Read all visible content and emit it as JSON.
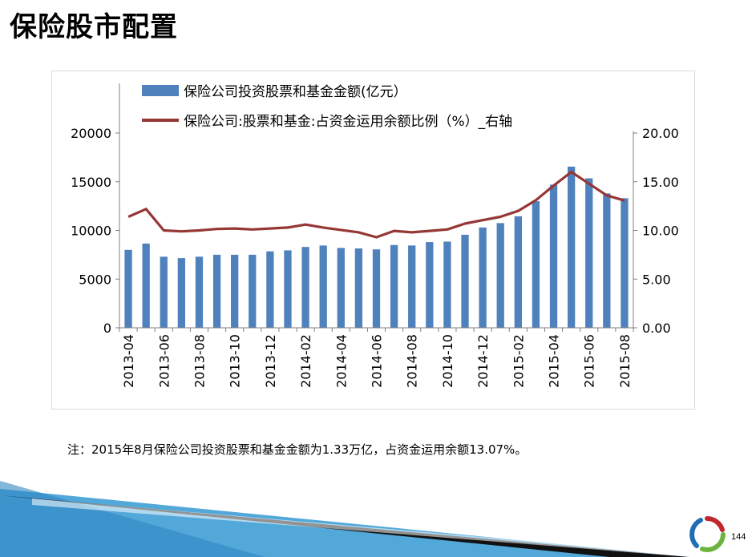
{
  "title": "保险股市配置",
  "note": "注：2015年8月保险公司投资股票和基金金额为1.33万亿，占资金运用余额13.07%。",
  "page_number": "144",
  "colors": {
    "bar": "#4f81bd",
    "line": "#953735",
    "axis": "#7f7f7f",
    "logo_blue": "#1f6fb5",
    "logo_red": "#c0282d",
    "logo_green": "#6cb33f",
    "deco_blue": "#4aa3d8"
  },
  "chart_data": {
    "type": "bar+line",
    "categories": [
      "2013-04",
      "2013-05",
      "2013-06",
      "2013-07",
      "2013-08",
      "2013-09",
      "2013-10",
      "2013-11",
      "2013-12",
      "2014-01",
      "2014-02",
      "2014-03",
      "2014-04",
      "2014-05",
      "2014-06",
      "2014-07",
      "2014-08",
      "2014-09",
      "2014-10",
      "2014-11",
      "2014-12",
      "2015-01",
      "2015-02",
      "2015-03",
      "2015-04",
      "2015-05",
      "2015-06",
      "2015-07",
      "2015-08"
    ],
    "tick_labels": [
      "2013-04",
      "2013-06",
      "2013-08",
      "2013-10",
      "2013-12",
      "2014-02",
      "2014-04",
      "2014-06",
      "2014-08",
      "2014-10",
      "2014-12",
      "2015-02",
      "2015-04",
      "2015-06",
      "2015-08"
    ],
    "series": [
      {
        "name": "保险公司投资股票和基金金额(亿元）",
        "type": "bar",
        "axis": "left",
        "values": [
          8000,
          8650,
          7300,
          7150,
          7300,
          7500,
          7500,
          7500,
          7850,
          7950,
          8300,
          8450,
          8200,
          8150,
          8050,
          8500,
          8450,
          8800,
          8850,
          9550,
          10300,
          10750,
          11450,
          13000,
          14700,
          16550,
          15350,
          13800,
          13300
        ]
      },
      {
        "name": "保险公司:股票和基金:占资金运用余额比例（%）_右轴",
        "type": "line",
        "axis": "right",
        "values": [
          11.4,
          12.2,
          10.0,
          9.9,
          10.0,
          10.15,
          10.2,
          10.1,
          10.2,
          10.3,
          10.6,
          10.3,
          10.05,
          9.8,
          9.3,
          9.95,
          9.8,
          9.95,
          10.1,
          10.7,
          11.05,
          11.4,
          12.0,
          13.1,
          14.6,
          16.0,
          14.8,
          13.6,
          13.07
        ]
      }
    ],
    "left_axis": {
      "ticks": [
        "0",
        "5000",
        "10000",
        "15000",
        "20000"
      ],
      "min": 0,
      "max": 20000
    },
    "right_axis": {
      "ticks": [
        "0.00",
        "5.00",
        "10.00",
        "15.00",
        "20.00"
      ],
      "min": 0,
      "max": 20
    },
    "legend_position": "top",
    "grid": false
  }
}
